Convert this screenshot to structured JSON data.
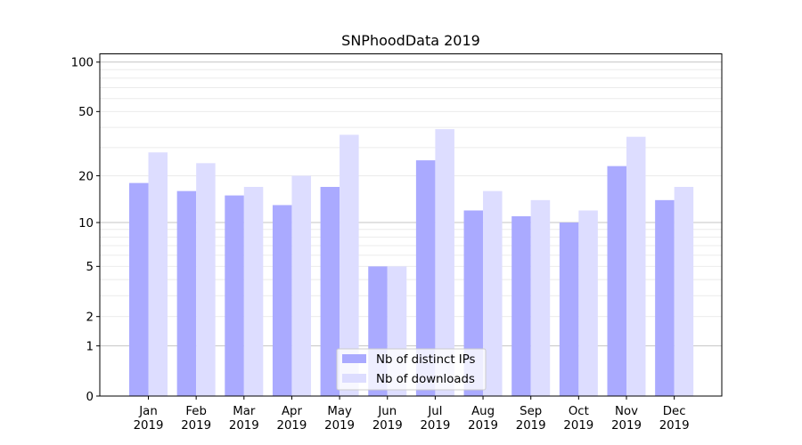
{
  "chart_data": {
    "type": "bar",
    "title": "SNPhoodData 2019",
    "xlabel": "",
    "ylabel": "",
    "yscale": "symlog",
    "ylim": [
      0,
      110
    ],
    "grid": "y-major-and-minor",
    "legend_position": "bottom-center",
    "categories": [
      [
        "Jan",
        "2019"
      ],
      [
        "Feb",
        "2019"
      ],
      [
        "Mar",
        "2019"
      ],
      [
        "Apr",
        "2019"
      ],
      [
        "May",
        "2019"
      ],
      [
        "Jun",
        "2019"
      ],
      [
        "Jul",
        "2019"
      ],
      [
        "Aug",
        "2019"
      ],
      [
        "Sep",
        "2019"
      ],
      [
        "Oct",
        "2019"
      ],
      [
        "Nov",
        "2019"
      ],
      [
        "Dec",
        "2019"
      ]
    ],
    "yticks": [
      0,
      1,
      2,
      5,
      10,
      20,
      50,
      100
    ],
    "ytick_labels": [
      "0",
      "1",
      "2",
      "5",
      "10",
      "20",
      "50",
      "100"
    ],
    "series": [
      {
        "name": "Nb of distinct IPs",
        "color": "#aaaaff",
        "values": [
          18,
          16,
          15,
          13,
          17,
          5,
          25,
          12,
          11,
          10,
          23,
          14
        ]
      },
      {
        "name": "Nb of downloads",
        "color": "#ddddff",
        "values": [
          28,
          24,
          17,
          20,
          36,
          5,
          39,
          16,
          14,
          12,
          35,
          17
        ]
      }
    ]
  }
}
